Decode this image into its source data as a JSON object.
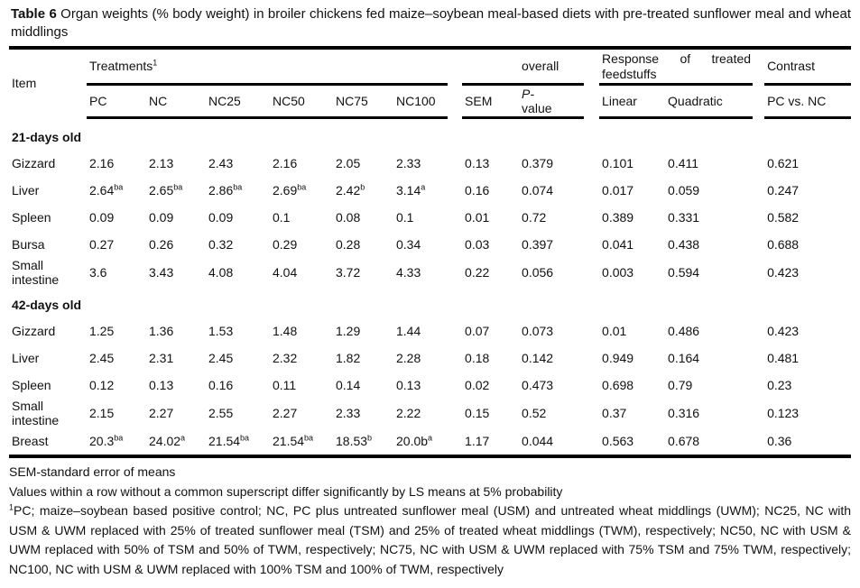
{
  "title": {
    "bold": "Table 6",
    "rest": " Organ weights (% body weight) in broiler chickens fed maize–soybean meal-based diets with pre-treated sunflower meal and wheat middlings"
  },
  "table": {
    "header": {
      "item": "Item",
      "treatments": {
        "label": "Treatments",
        "sup": "1"
      },
      "overall": "overall",
      "response": "Response of treated feedstuffs",
      "contrast": "Contrast",
      "columns": [
        "PC",
        "NC",
        "NC25",
        "NC50",
        "NC75",
        "NC100"
      ],
      "sem": "SEM",
      "p_value": {
        "line1": "P-",
        "line2": "value"
      },
      "linear": "Linear",
      "quadratic": "Quadratic",
      "pc_vs_nc": "PC vs. NC"
    },
    "sections": [
      {
        "label": "21-days old",
        "rows": [
          {
            "item": "Gizzard",
            "cells": [
              "2.16",
              "2.13",
              "2.43",
              "2.16",
              "2.05",
              "2.33",
              "0.13",
              "0.379",
              "0.101",
              "0.411",
              "0.621"
            ]
          },
          {
            "item": "Liver",
            "cells": [
              {
                "v": "2.64",
                "sup": "ba"
              },
              {
                "v": "2.65",
                "sup": "ba"
              },
              {
                "v": "2.86",
                "sup": "ba"
              },
              {
                "v": "2.69",
                "sup": "ba"
              },
              {
                "v": "2.42",
                "sup": "b"
              },
              {
                "v": "3.14",
                "sup": "a"
              },
              "0.16",
              "0.074",
              "0.017",
              "0.059",
              "0.247"
            ]
          },
          {
            "item": "Spleen",
            "cells": [
              "0.09",
              "0.09",
              "0.09",
              "0.1",
              "0.08",
              "0.1",
              "0.01",
              "0.72",
              "0.389",
              "0.331",
              "0.582"
            ]
          },
          {
            "item": "Bursa",
            "cells": [
              "0.27",
              "0.26",
              "0.32",
              "0.29",
              "0.28",
              "0.34",
              "0.03",
              "0.397",
              "0.041",
              "0.438",
              "0.688"
            ]
          },
          {
            "item": "Small intestine",
            "cells": [
              "3.6",
              "3.43",
              "4.08",
              "4.04",
              "3.72",
              "4.33",
              "0.22",
              "0.056",
              "0.003",
              "0.594",
              "0.423"
            ]
          }
        ]
      },
      {
        "label": "42-days old",
        "rows": [
          {
            "item": "Gizzard",
            "cells": [
              "1.25",
              "1.36",
              "1.53",
              "1.48",
              "1.29",
              "1.44",
              "0.07",
              "0.073",
              "0.01",
              "0.486",
              "0.423"
            ]
          },
          {
            "item": "Liver",
            "cells": [
              "2.45",
              "2.31",
              "2.45",
              "2.32",
              "1.82",
              "2.28",
              "0.18",
              "0.142",
              "0.949",
              "0.164",
              "0.481"
            ]
          },
          {
            "item": "Spleen",
            "cells": [
              "0.12",
              "0.13",
              "0.16",
              "0.11",
              "0.14",
              "0.13",
              "0.02",
              "0.473",
              "0.698",
              "0.79",
              "0.23"
            ]
          },
          {
            "item": "Small intestine",
            "cells": [
              "2.15",
              "2.27",
              "2.55",
              "2.27",
              "2.33",
              "2.22",
              "0.15",
              "0.52",
              "0.37",
              "0.316",
              "0.123"
            ]
          },
          {
            "item": "Breast",
            "cells": [
              {
                "v": "20.3",
                "sup": "ba"
              },
              {
                "v": "24.02",
                "sup": "a"
              },
              {
                "v": "21.54",
                "sup": "ba"
              },
              {
                "v": "21.54",
                "sup": "ba"
              },
              {
                "v": "18.53",
                "sup": "b"
              },
              {
                "v": "20.0b",
                "sup": "a"
              },
              "1.17",
              "0.044",
              "0.563",
              "0.678",
              "0.36"
            ]
          }
        ]
      }
    ]
  },
  "footnotes": {
    "fn1": "SEM-standard error of means",
    "fn2": "Values within a row without a common superscript differ significantly by LS means at 5% probability",
    "fn3": {
      "sup": "1",
      "text": "PC; maize–soybean based positive control; NC, PC plus untreated sunflower meal (USM) and untreated wheat middlings (UWM); NC25, NC with USM & UWM replaced with 25% of treated sunflower meal (TSM) and 25% of treated wheat middlings (TWM), respectively; NC50, NC with USM & UWM replaced with 50% of TSM and 50% of TWM, respectively; NC75, NC with USM & UWM replaced with 75% TSM and 75% TWM, respectively; NC100, NC with USM & UWM replaced with 100% TSM and 100% of TWM, respectively"
    }
  }
}
